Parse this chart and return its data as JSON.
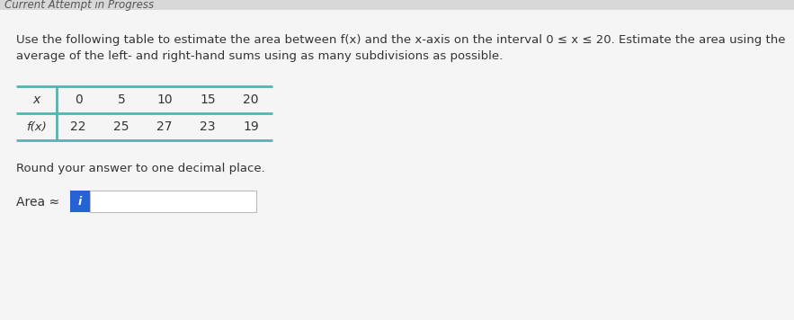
{
  "title_top": "Current Attempt in Progress",
  "line1": "Use the following table to estimate the area between f(x) and the x-axis on the interval 0 ≤ x ≤ 20. Estimate the area using the",
  "line2": "average of the left- and right-hand sums using as many subdivisions as possible.",
  "table_x_label": "x",
  "table_fx_label": "f(x)",
  "x_values": [
    "0",
    "5",
    "10",
    "15",
    "20"
  ],
  "fx_values": [
    "22",
    "25",
    "27",
    "23",
    "19"
  ],
  "round_text": "Round your answer to one decimal place.",
  "area_label": "Area ≈",
  "bg_color": "#e8e8e8",
  "page_color": "#f5f5f5",
  "teal_color": "#4cb8b0",
  "input_box_color": "#2563d4",
  "title_color": "#555555",
  "body_color": "#333333"
}
